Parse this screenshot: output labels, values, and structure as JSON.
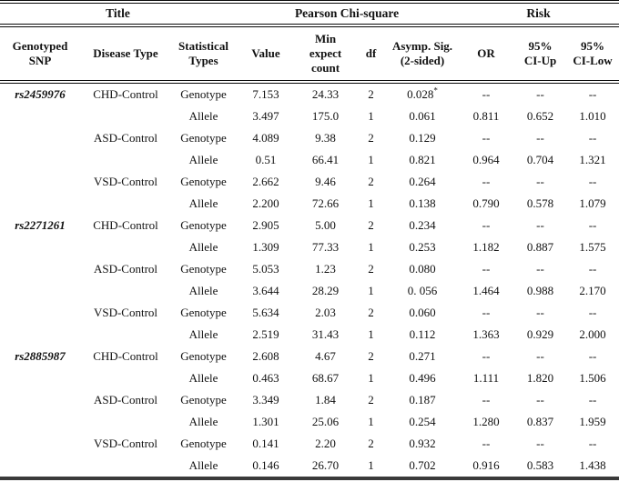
{
  "table": {
    "group_headers": [
      {
        "label": "Title"
      },
      {
        "label": "Pearson Chi-square"
      },
      {
        "label": "Risk"
      }
    ],
    "columns": [
      "Genotyped\nSNP",
      "Disease Type",
      "Statistical\nTypes",
      "Value",
      "Min\nexpect\ncount",
      "df",
      "Asymp. Sig.\n(2-sided)",
      "OR",
      "95%\nCI-Up",
      "95%\nCI-Low"
    ],
    "rows": [
      [
        "rs2459976",
        "CHD-Control",
        "Genotype",
        "7.153",
        "24.33",
        "2",
        "0.028*",
        "--",
        "--",
        "--"
      ],
      [
        "",
        "",
        "Allele",
        "3.497",
        "175.0",
        "1",
        "0.061",
        "0.811",
        "0.652",
        "1.010"
      ],
      [
        "",
        "ASD-Control",
        "Genotype",
        "4.089",
        "9.38",
        "2",
        "0.129",
        "--",
        "--",
        "--"
      ],
      [
        "",
        "",
        "Allele",
        "0.51",
        "66.41",
        "1",
        "0.821",
        "0.964",
        "0.704",
        "1.321"
      ],
      [
        "",
        "VSD-Control",
        "Genotype",
        "2.662",
        "9.46",
        "2",
        "0.264",
        "--",
        "--",
        "--"
      ],
      [
        "",
        "",
        "Allele",
        "2.200",
        "72.66",
        "1",
        "0.138",
        "0.790",
        "0.578",
        "1.079"
      ],
      [
        "rs2271261",
        "CHD-Control",
        "Genotype",
        "2.905",
        "5.00",
        "2",
        "0.234",
        "--",
        "--",
        "--"
      ],
      [
        "",
        "",
        "Allele",
        "1.309",
        "77.33",
        "1",
        "0.253",
        "1.182",
        "0.887",
        "1.575"
      ],
      [
        "",
        "ASD-Control",
        "Genotype",
        "5.053",
        "1.23",
        "2",
        "0.080",
        "--",
        "--",
        "--"
      ],
      [
        "",
        "",
        "Allele",
        "3.644",
        "28.29",
        "1",
        "0. 056",
        "1.464",
        "0.988",
        "2.170"
      ],
      [
        "",
        "VSD-Control",
        "Genotype",
        "5.634",
        "2.03",
        "2",
        "0.060",
        "--",
        "--",
        "--"
      ],
      [
        "",
        "",
        "Allele",
        "2.519",
        "31.43",
        "1",
        "0.112",
        "1.363",
        "0.929",
        "2.000"
      ],
      [
        "rs2885987",
        "CHD-Control",
        "Genotype",
        "2.608",
        "4.67",
        "2",
        "0.271",
        "--",
        "--",
        "--"
      ],
      [
        "",
        "",
        "Allele",
        "0.463",
        "68.67",
        "1",
        "0.496",
        "1.111",
        "1.820",
        "1.506"
      ],
      [
        "",
        "ASD-Control",
        "Genotype",
        "3.349",
        "1.84",
        "2",
        "0.187",
        "--",
        "--",
        "--"
      ],
      [
        "",
        "",
        "Allele",
        "1.301",
        "25.06",
        "1",
        "0.254",
        "1.280",
        "0.837",
        "1.959"
      ],
      [
        "",
        "VSD-Control",
        "Genotype",
        "0.141",
        "2.20",
        "2",
        "0.932",
        "--",
        "--",
        "--"
      ],
      [
        "",
        "",
        "Allele",
        "0.146",
        "26.70",
        "1",
        "0.702",
        "0.916",
        "0.583",
        "1.438"
      ]
    ]
  }
}
